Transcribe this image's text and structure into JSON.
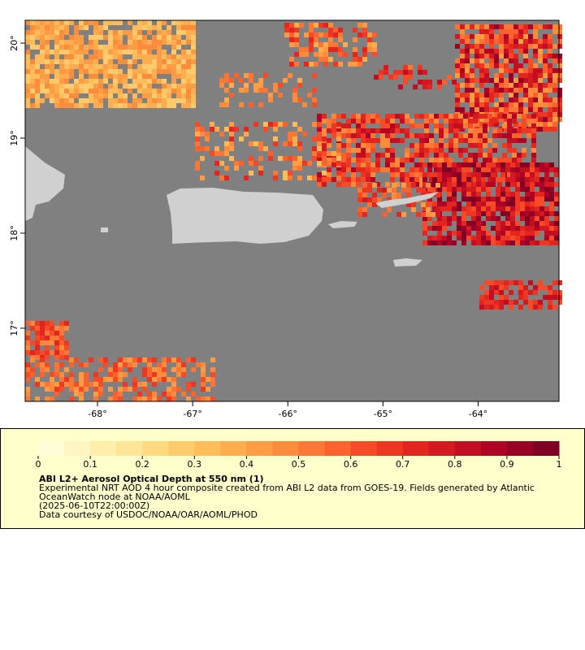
{
  "map": {
    "xlim": [
      -68.76,
      -63.15
    ],
    "ylim": [
      16.23,
      20.24
    ],
    "xticks": [
      {
        "value": -68,
        "label": "-68°"
      },
      {
        "value": -67,
        "label": "-67°"
      },
      {
        "value": -66,
        "label": "-66°"
      },
      {
        "value": -65,
        "label": "-65°"
      },
      {
        "value": -64,
        "label": "-64°"
      }
    ],
    "yticks": [
      {
        "value": 17,
        "label": "17°"
      },
      {
        "value": 18,
        "label": "18°"
      },
      {
        "value": 19,
        "label": "19°"
      },
      {
        "value": 20,
        "label": "20°"
      }
    ]
  },
  "colorbar": {
    "range": [
      0,
      1
    ],
    "ticks": [
      0,
      0.1,
      0.2,
      0.3,
      0.4,
      0.5,
      0.6,
      0.7,
      0.8,
      0.9,
      1
    ],
    "colors": [
      "#fffcd8",
      "#fff5c0",
      "#ffedaa",
      "#fee497",
      "#fed980",
      "#fecb6c",
      "#febd5a",
      "#fead4e",
      "#fd9c44",
      "#fd8b3c",
      "#fc7635",
      "#fc612e",
      "#f74b28",
      "#ee3723",
      "#e2251f",
      "#d41920",
      "#c30d23",
      "#b00426",
      "#9a0026",
      "#800026"
    ]
  },
  "legend": {
    "title": "ABI L2+ Aerosol Optical Depth at 550 nm (1)",
    "lines": [
      "Experimental NRT AOD 4 hour composite created from ABI L2 data from GOES-19. Fields generated by Atlantic",
      "OceanWatch node at NOAA/AOML",
      "(2025-06-10T22:00:00Z)",
      "Data courtesy of USDOC/NOAA/OAR/AOML/PHOD"
    ]
  }
}
